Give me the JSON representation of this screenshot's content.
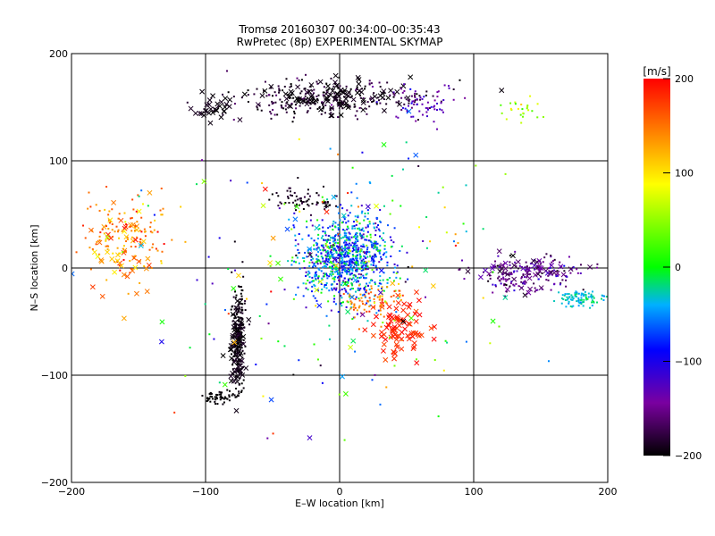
{
  "chart_data": {
    "type": "scatter",
    "title": "Tromsø 20160307 00:34:00–00:35:43",
    "subtitle": "RwPretec (8p) EXPERIMENTAL SKYMAP",
    "xlabel": "E–W location [km]",
    "ylabel": "N–S location [km]",
    "xlim": [
      -200,
      200
    ],
    "ylim": [
      -200,
      200
    ],
    "x_ticks": [
      -200,
      -100,
      0,
      100,
      200
    ],
    "y_ticks": [
      -200,
      -100,
      0,
      100,
      200
    ],
    "x_tick_labels": [
      "−200",
      "−100",
      "0",
      "100",
      "200"
    ],
    "y_tick_labels": [
      "−200",
      "−100",
      "0",
      "100",
      "200"
    ],
    "grid": true,
    "colorbar": {
      "unit_label": "[m/s]",
      "range": [
        -200,
        200
      ],
      "ticks": [
        200,
        100,
        0,
        -100,
        -200
      ],
      "tick_labels": [
        "200",
        "100",
        "0",
        "−100",
        "−200"
      ],
      "colors": [
        "#000000",
        "#7a00a0",
        "#0000ff",
        "#00b0ff",
        "#00ff00",
        "#ffff00",
        "#ff8000",
        "#ff0000"
      ]
    },
    "marker_types": [
      "x",
      "dot"
    ],
    "clusters": [
      {
        "region": "central",
        "center": [
          5,
          10
        ],
        "spread": [
          28,
          32
        ],
        "count": 900,
        "velocity": -60,
        "velocity_spread": 70,
        "marker": "dot"
      },
      {
        "region": "north band",
        "center": [
          -10,
          158
        ],
        "spread": [
          60,
          14
        ],
        "count": 260,
        "velocity": -185,
        "velocity_spread": 20,
        "marker": "dot"
      },
      {
        "region": "north band crosses",
        "center": [
          -5,
          160
        ],
        "spread": [
          55,
          12
        ],
        "count": 90,
        "velocity": -195,
        "velocity_spread": 10,
        "marker": "x"
      },
      {
        "region": "north-west crosses",
        "center": [
          -95,
          148
        ],
        "spread": [
          12,
          8
        ],
        "count": 30,
        "velocity": -195,
        "velocity_spread": 10,
        "marker": "x"
      },
      {
        "region": "north-east band",
        "center": [
          60,
          155
        ],
        "spread": [
          25,
          15
        ],
        "count": 70,
        "velocity": -130,
        "velocity_spread": 30,
        "marker": "dot"
      },
      {
        "region": "north-east edge",
        "center": [
          135,
          148
        ],
        "spread": [
          15,
          8
        ],
        "count": 25,
        "velocity": 60,
        "velocity_spread": 40,
        "marker": "dot"
      },
      {
        "region": "upper middle",
        "center": [
          -28,
          62
        ],
        "spread": [
          20,
          10
        ],
        "count": 70,
        "velocity": -190,
        "velocity_spread": 15,
        "marker": "dot"
      },
      {
        "region": "west",
        "center": [
          -160,
          30
        ],
        "spread": [
          25,
          30
        ],
        "count": 130,
        "velocity": 150,
        "velocity_spread": 50,
        "marker": "dot"
      },
      {
        "region": "west crosses",
        "center": [
          -160,
          15
        ],
        "spread": [
          22,
          35
        ],
        "count": 50,
        "velocity": 140,
        "velocity_spread": 50,
        "marker": "x"
      },
      {
        "region": "south-west arc",
        "center": [
          -75,
          -60
        ],
        "spread": [
          4,
          40
        ],
        "count": 180,
        "velocity": -195,
        "velocity_spread": 10,
        "marker": "dot"
      },
      {
        "region": "south-west arc crosses",
        "center": [
          -76,
          -75
        ],
        "spread": [
          5,
          35
        ],
        "count": 70,
        "velocity": -195,
        "velocity_spread": 10,
        "marker": "x"
      },
      {
        "region": "south-west hook",
        "center": [
          -90,
          -120
        ],
        "spread": [
          10,
          6
        ],
        "count": 60,
        "velocity": -200,
        "velocity_spread": 5,
        "marker": "dot"
      },
      {
        "region": "south-east crosses",
        "center": [
          45,
          -55
        ],
        "spread": [
          18,
          25
        ],
        "count": 90,
        "velocity": 185,
        "velocity_spread": 20,
        "marker": "x"
      },
      {
        "region": "south-east dots",
        "center": [
          25,
          -30
        ],
        "spread": [
          20,
          15
        ],
        "count": 80,
        "velocity": 150,
        "velocity_spread": 40,
        "marker": "dot"
      },
      {
        "region": "east band",
        "center": [
          140,
          -5
        ],
        "spread": [
          35,
          15
        ],
        "count": 160,
        "velocity": -150,
        "velocity_spread": 40,
        "marker": "dot"
      },
      {
        "region": "east band crosses",
        "center": [
          140,
          -5
        ],
        "spread": [
          30,
          12
        ],
        "count": 50,
        "velocity": -160,
        "velocity_spread": 30,
        "marker": "x"
      },
      {
        "region": "east edge",
        "center": [
          180,
          -28
        ],
        "spread": [
          15,
          6
        ],
        "count": 90,
        "velocity": -30,
        "velocity_spread": 20,
        "marker": "dot"
      },
      {
        "region": "scattered",
        "center": [
          0,
          0
        ],
        "spread": [
          120,
          110
        ],
        "count": 160,
        "velocity": 0,
        "velocity_spread": 150,
        "marker": "dot"
      },
      {
        "region": "scattered crosses",
        "center": [
          0,
          0
        ],
        "spread": [
          110,
          100
        ],
        "count": 60,
        "velocity": 0,
        "velocity_spread": 150,
        "marker": "x"
      }
    ]
  }
}
